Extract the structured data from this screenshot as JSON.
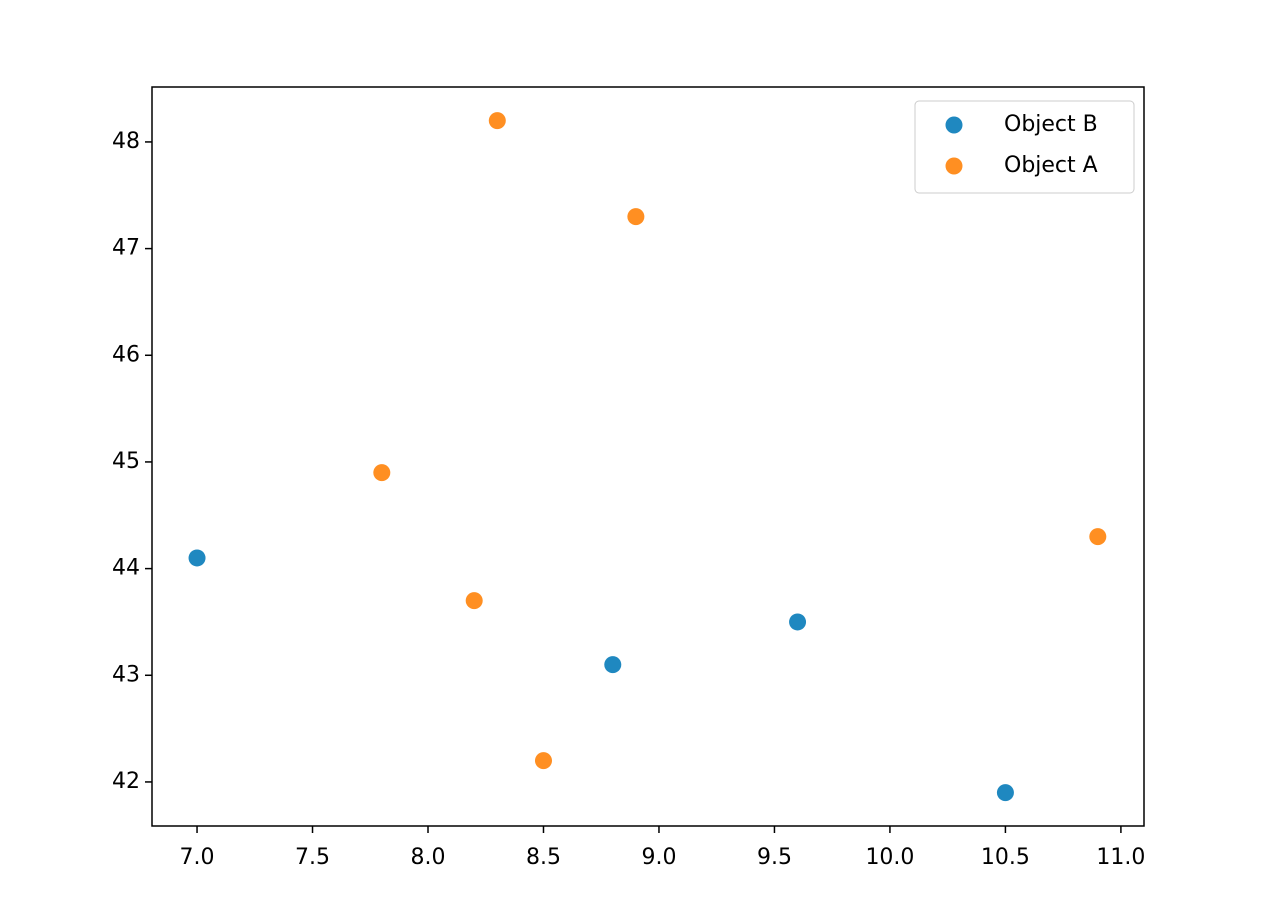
{
  "chart_data": {
    "type": "scatter",
    "series": [
      {
        "name": "Object B",
        "color": "#1f88c0",
        "x": [
          7.0,
          8.8,
          9.6,
          10.5
        ],
        "values": [
          44.1,
          43.1,
          43.5,
          41.9
        ]
      },
      {
        "name": "Object A",
        "color": "#ff8f22",
        "x": [
          8.3,
          8.9,
          7.8,
          8.2,
          8.5,
          10.9
        ],
        "values": [
          48.2,
          47.3,
          44.9,
          43.7,
          42.2,
          44.3
        ]
      }
    ],
    "xlim": [
      6.805,
      11.1
    ],
    "ylim": [
      41.587,
      48.515
    ],
    "xticks": [
      {
        "value": 7,
        "label": "7.0"
      },
      7.5,
      {
        "value": 8,
        "label": "8.0"
      },
      8.5,
      {
        "value": 9,
        "label": "9.0"
      },
      9.5,
      {
        "value": 10,
        "label": "10.0"
      },
      10.5,
      {
        "value": 11,
        "label": "11.0"
      }
    ],
    "yticks": [
      42,
      43,
      44,
      45,
      46,
      47,
      48
    ],
    "grid": false,
    "legend": "upper right"
  }
}
